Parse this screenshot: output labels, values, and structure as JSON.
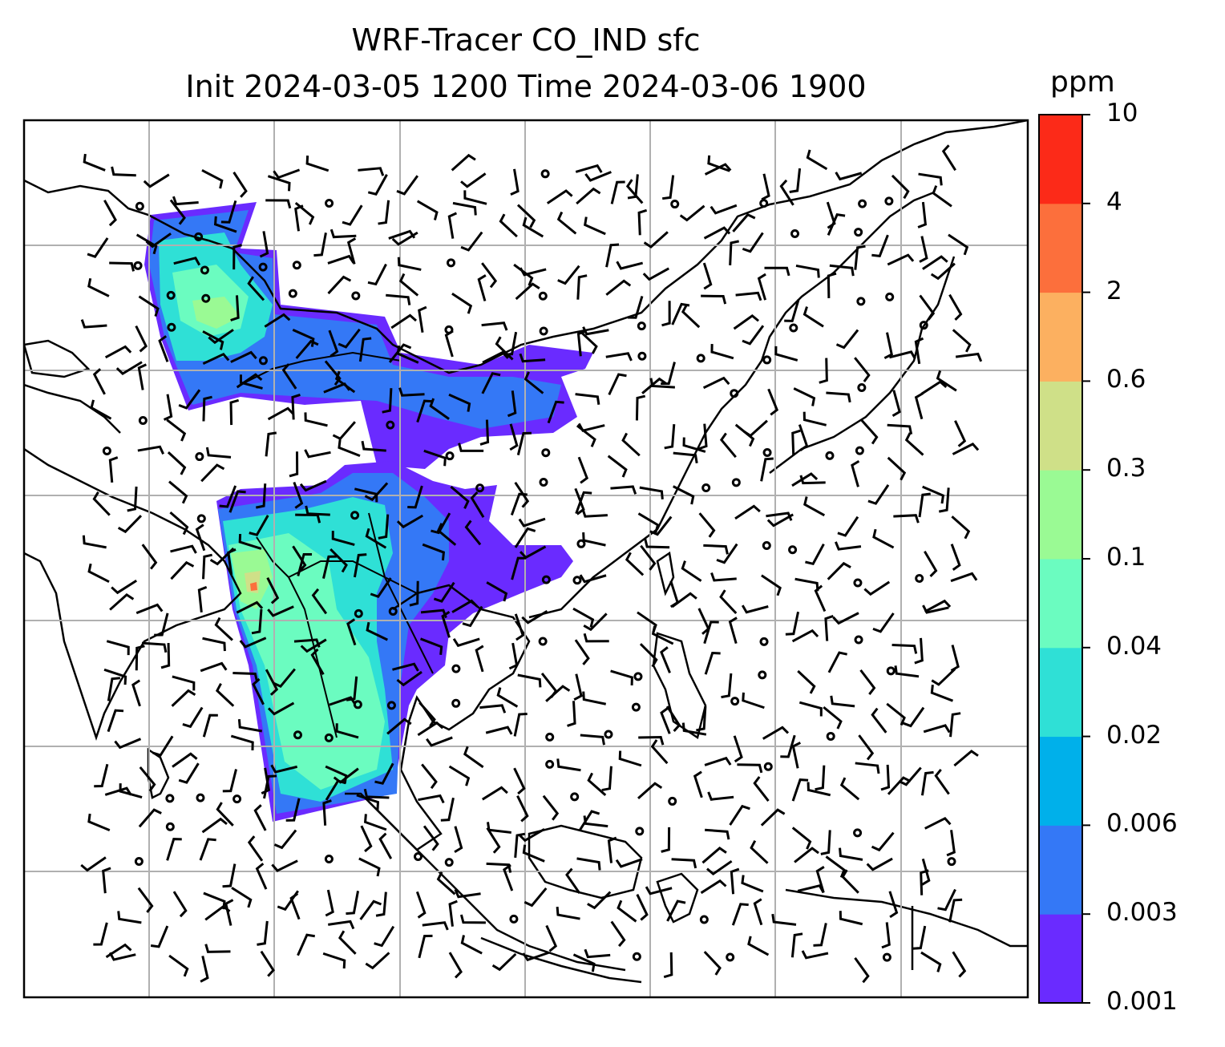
{
  "title": {
    "line1": "WRF-Tracer CO_IND sfc",
    "line2": "Init 2024-03-05 1200 Time 2024-03-06 1900"
  },
  "colorbar": {
    "unit": "ppm",
    "levels": [
      "0.001",
      "0.003",
      "0.006",
      "0.02",
      "0.04",
      "0.1",
      "0.3",
      "0.6",
      "2",
      "4",
      "10"
    ],
    "colors": [
      "#6a2bff",
      "#3478f6",
      "#00b0ea",
      "#2fe0d6",
      "#6bfcc0",
      "#9afa94",
      "#cfe088",
      "#fcb060",
      "#fc6f3c",
      "#fc2a18"
    ]
  },
  "map": {
    "field": "CO_IND tracer concentration",
    "wind_barbs": true,
    "gridlines": true,
    "coastlines": true
  }
}
